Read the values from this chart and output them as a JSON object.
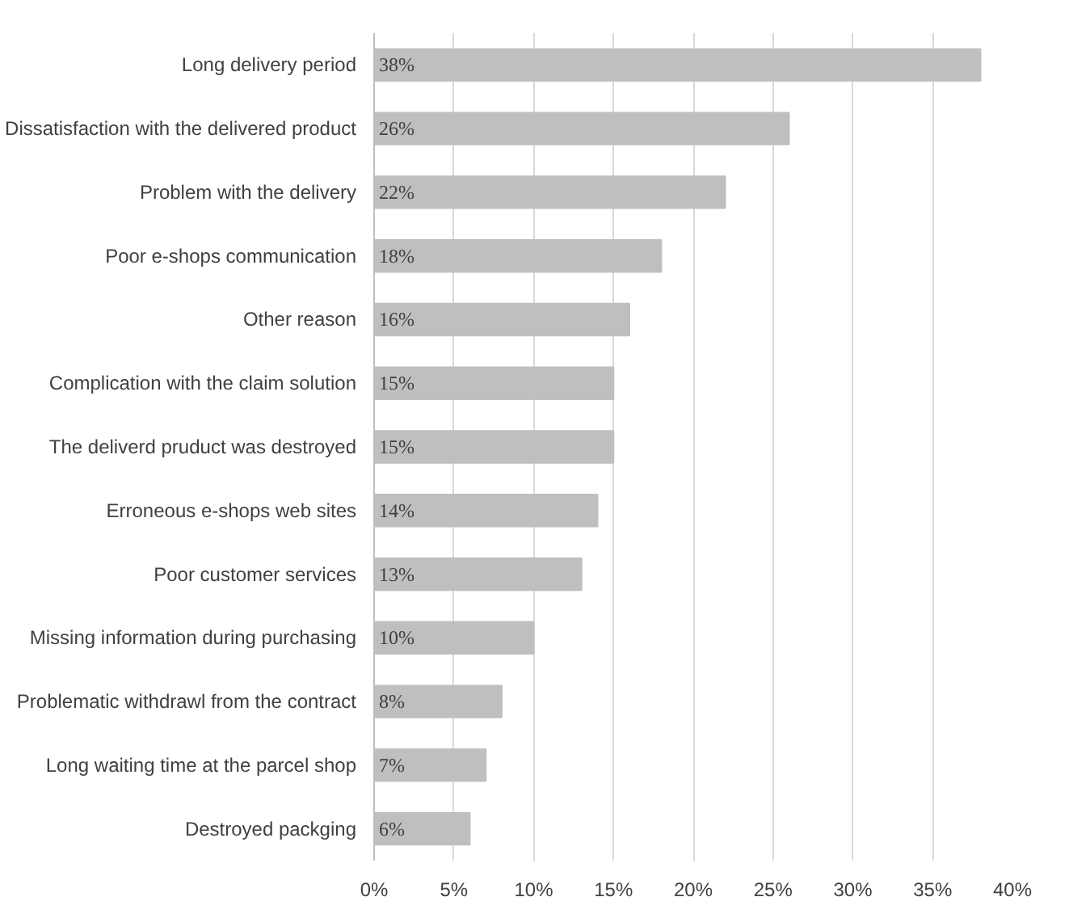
{
  "chart_data": {
    "type": "bar",
    "orientation": "horizontal",
    "categories": [
      "Long delivery period",
      "Dissatisfaction with the delivered product",
      "Problem with the delivery",
      "Poor e-shops communication",
      "Other reason",
      "Complication with the claim solution",
      "The deliverd pruduct was destroyed",
      "Erroneous e-shops web sites",
      "Poor customer services",
      "Missing information during purchasing",
      "Problematic withdrawl from the contract",
      "Long waiting time at the parcel shop",
      "Destroyed packging"
    ],
    "values": [
      38,
      26,
      22,
      18,
      16,
      15,
      15,
      14,
      13,
      10,
      8,
      7,
      6
    ],
    "value_labels": [
      "38%",
      "26%",
      "22%",
      "18%",
      "16%",
      "15%",
      "15%",
      "14%",
      "13%",
      "10%",
      "8%",
      "7%",
      "6%"
    ],
    "color": "#bfbfbf",
    "xlim": [
      0,
      40
    ],
    "xticks": [
      {
        "value": 0,
        "label": "0%"
      },
      {
        "value": 5,
        "label": "5%"
      },
      {
        "value": 10,
        "label": "10%"
      },
      {
        "value": 15,
        "label": "15%"
      },
      {
        "value": 20,
        "label": "20%"
      },
      {
        "value": 25,
        "label": "25%"
      },
      {
        "value": 30,
        "label": "30%"
      },
      {
        "value": 35,
        "label": "35%"
      },
      {
        "value": 40,
        "label": "40%"
      }
    ],
    "grid": "x"
  }
}
